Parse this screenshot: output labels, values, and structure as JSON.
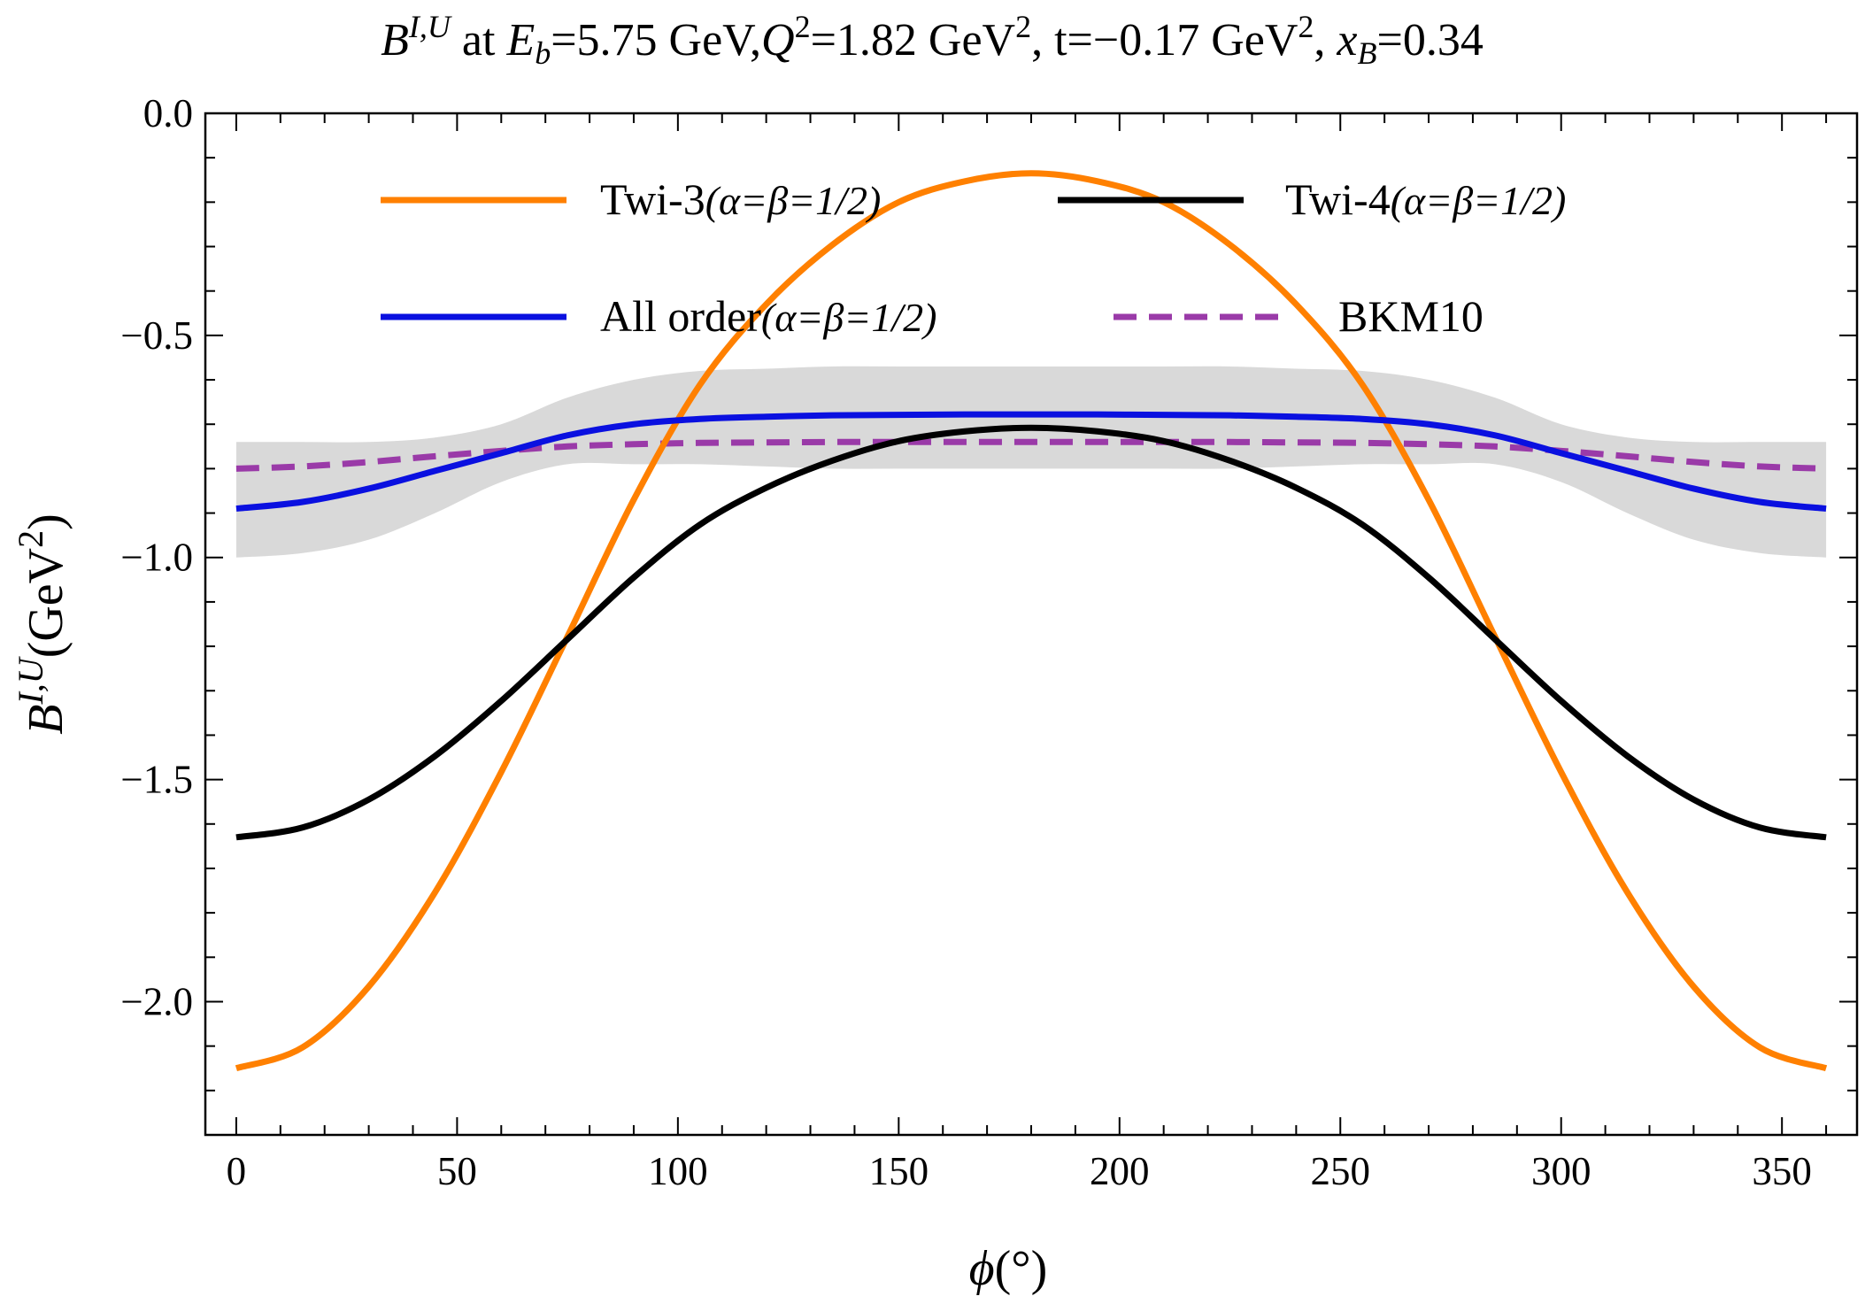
{
  "chart_data": {
    "type": "line",
    "title": {
      "main": "B",
      "main_sup": "I,U",
      "at": " at ",
      "eb_sym": "E",
      "eb_sub": "b",
      "eb_val": "=5.75 GeV,",
      "q_sym": "Q",
      "q_sup": "2",
      "q_val": "=1.82 GeV",
      "q_unit_sup": "2",
      "t_text": ", t=−0.17 GeV",
      "t_unit_sup": "2",
      "x_sep": ", ",
      "x_sym": "x",
      "x_sub": "B",
      "x_val": "=0.34"
    },
    "xlabel": {
      "sym": "ϕ",
      "unit": "(°)"
    },
    "ylabel": {
      "sym": "B",
      "sup": "I,U",
      "unit": "(GeV",
      "unit_sup": "2",
      "unit_close": ")"
    },
    "xlim": [
      -7,
      367
    ],
    "ylim": [
      -2.3,
      0.0
    ],
    "x_ticks": [
      0,
      50,
      100,
      150,
      200,
      250,
      300,
      350
    ],
    "x_tick_labels": [
      "0",
      "50",
      "100",
      "150",
      "200",
      "250",
      "300",
      "350"
    ],
    "y_ticks": [
      0.0,
      -0.5,
      -1.0,
      -1.5,
      -2.0
    ],
    "y_tick_labels": [
      "0.0",
      "−0.5",
      "−1.0",
      "−1.5",
      "−2.0"
    ],
    "grid": false,
    "legend_position": "top",
    "x": [
      0,
      15,
      30,
      45,
      60,
      75,
      90,
      105,
      120,
      135,
      150,
      165,
      180,
      195,
      210,
      225,
      240,
      255,
      270,
      285,
      300,
      315,
      330,
      345,
      360
    ],
    "band": {
      "name": "uncertainty band",
      "upper": [
        -0.74,
        -0.74,
        -0.74,
        -0.73,
        -0.7,
        -0.64,
        -0.6,
        -0.58,
        -0.575,
        -0.57,
        -0.57,
        -0.57,
        -0.57,
        -0.57,
        -0.57,
        -0.57,
        -0.575,
        -0.58,
        -0.6,
        -0.64,
        -0.7,
        -0.73,
        -0.74,
        -0.74,
        -0.74
      ],
      "lower": [
        -1.0,
        -0.99,
        -0.96,
        -0.9,
        -0.83,
        -0.79,
        -0.79,
        -0.79,
        -0.795,
        -0.8,
        -0.8,
        -0.8,
        -0.8,
        -0.8,
        -0.8,
        -0.8,
        -0.795,
        -0.79,
        -0.79,
        -0.79,
        -0.83,
        -0.9,
        -0.96,
        -0.99,
        -1.0
      ]
    },
    "series": [
      {
        "name": "Twi-3",
        "name_math": "(α=β=1/2)",
        "color": "#ff8000",
        "dashed": false,
        "values": [
          -2.15,
          -2.103,
          -1.966,
          -1.754,
          -1.483,
          -1.178,
          -0.87,
          -0.611,
          -0.43,
          -0.296,
          -0.2,
          -0.153,
          -0.135,
          -0.153,
          -0.2,
          -0.296,
          -0.43,
          -0.611,
          -0.87,
          -1.178,
          -1.483,
          -1.754,
          -1.966,
          -2.103,
          -2.15
        ]
      },
      {
        "name": "Twi-4",
        "name_math": "(α=β=1/2)",
        "color": "#000000",
        "dashed": false,
        "values": [
          -1.63,
          -1.608,
          -1.545,
          -1.447,
          -1.323,
          -1.184,
          -1.045,
          -0.926,
          -0.843,
          -0.782,
          -0.738,
          -0.716,
          -0.708,
          -0.716,
          -0.738,
          -0.782,
          -0.843,
          -0.926,
          -1.045,
          -1.184,
          -1.323,
          -1.447,
          -1.545,
          -1.608,
          -1.63
        ]
      },
      {
        "name": "All order",
        "name_math": "(α=β=1/2)",
        "color": "#0a10e0",
        "dashed": false,
        "values": [
          -0.89,
          -0.875,
          -0.845,
          -0.805,
          -0.765,
          -0.725,
          -0.7,
          -0.688,
          -0.683,
          -0.68,
          -0.679,
          -0.678,
          -0.678,
          -0.678,
          -0.679,
          -0.68,
          -0.683,
          -0.688,
          -0.7,
          -0.725,
          -0.765,
          -0.805,
          -0.845,
          -0.875,
          -0.89
        ]
      },
      {
        "name": "BKM10",
        "name_math": "",
        "color": "#9a3aa8",
        "dashed": true,
        "values": [
          -0.8,
          -0.795,
          -0.785,
          -0.772,
          -0.76,
          -0.75,
          -0.745,
          -0.742,
          -0.741,
          -0.74,
          -0.74,
          -0.74,
          -0.74,
          -0.74,
          -0.74,
          -0.74,
          -0.741,
          -0.742,
          -0.745,
          -0.75,
          -0.76,
          -0.772,
          -0.785,
          -0.795,
          -0.8
        ]
      }
    ]
  }
}
